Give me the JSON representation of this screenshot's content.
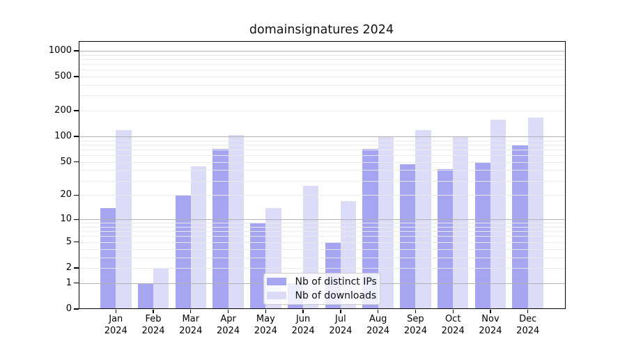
{
  "chart_data": {
    "type": "bar",
    "title": "domainsignatures 2024",
    "categories": [
      "Jan",
      "Feb",
      "Mar",
      "Apr",
      "May",
      "Jun",
      "Jul",
      "Aug",
      "Sep",
      "Oct",
      "Nov",
      "Dec"
    ],
    "category_year": "2024",
    "series": [
      {
        "name": "Nb of distinct IPs",
        "color": "#a5a5f2",
        "values": [
          14,
          1,
          20,
          72,
          9,
          1,
          5,
          71,
          47,
          41,
          50,
          78
        ]
      },
      {
        "name": "Nb of downloads",
        "color": "#dcdcf8",
        "values": [
          118,
          2,
          44,
          103,
          14,
          26,
          17,
          100,
          118,
          100,
          158,
          166
        ]
      }
    ],
    "xlabel": "",
    "ylabel": "",
    "yscale": "log10(value+1)",
    "yticks": [
      0,
      1,
      2,
      5,
      10,
      20,
      50,
      100,
      200,
      500,
      1000
    ],
    "ylim": [
      0,
      1280
    ],
    "grid": "horizontal major and minor gridlines",
    "legend_position": "lower center inside plot"
  },
  "palette": {
    "grid_major": "#b1b1b1",
    "grid_minor": "#e9e9e9",
    "axis": "#000000",
    "background": "#ffffff",
    "legend_border": "#cccccc",
    "text": "#111111"
  }
}
